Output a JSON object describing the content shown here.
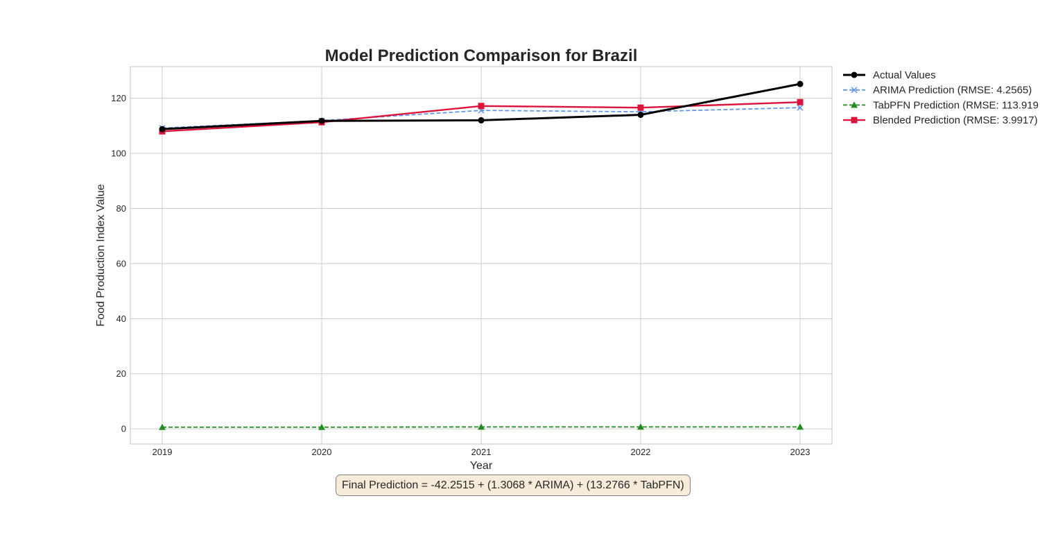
{
  "chart_data": {
    "type": "line",
    "title": "Model Prediction Comparison for Brazil",
    "xlabel": "Year",
    "ylabel": "Food Production Index Value",
    "x": [
      2019,
      2020,
      2021,
      2022,
      2023
    ],
    "x_ticks": [
      "2019",
      "2020",
      "2021",
      "2022",
      "2023"
    ],
    "y_ticks": [
      "0",
      "20",
      "40",
      "60",
      "80",
      "100",
      "120"
    ],
    "xlim": [
      2018.8,
      2023.2
    ],
    "ylim": [
      -5.5,
      131.5
    ],
    "grid": true,
    "legend_position": "outside-right",
    "series": [
      {
        "name": "Actual Values",
        "values": [
          108.8,
          111.8,
          112.0,
          114.0,
          125.2
        ],
        "color": "#000000",
        "marker": "circle",
        "line_style": "solid"
      },
      {
        "name": "ARIMA Prediction (RMSE: 4.2565)",
        "values": [
          109.2,
          111.9,
          115.6,
          115.1,
          116.6
        ],
        "color": "#6495ed",
        "marker": "x",
        "line_style": "dashed"
      },
      {
        "name": "TabPFN Prediction (RMSE: 113.919",
        "values": [
          0.6,
          0.6,
          0.7,
          0.7,
          0.7
        ],
        "color": "#228b22",
        "marker": "triangle",
        "line_style": "dashed"
      },
      {
        "name": "Blended Prediction (RMSE: 3.9917)",
        "values": [
          108.0,
          111.3,
          117.2,
          116.6,
          118.6
        ],
        "color": "#dc143c",
        "marker": "square",
        "line_style": "solid"
      }
    ],
    "annotation": "Final Prediction = -42.2515 + (1.3068 * ARIMA) + (13.2766 * TabPFN)"
  }
}
